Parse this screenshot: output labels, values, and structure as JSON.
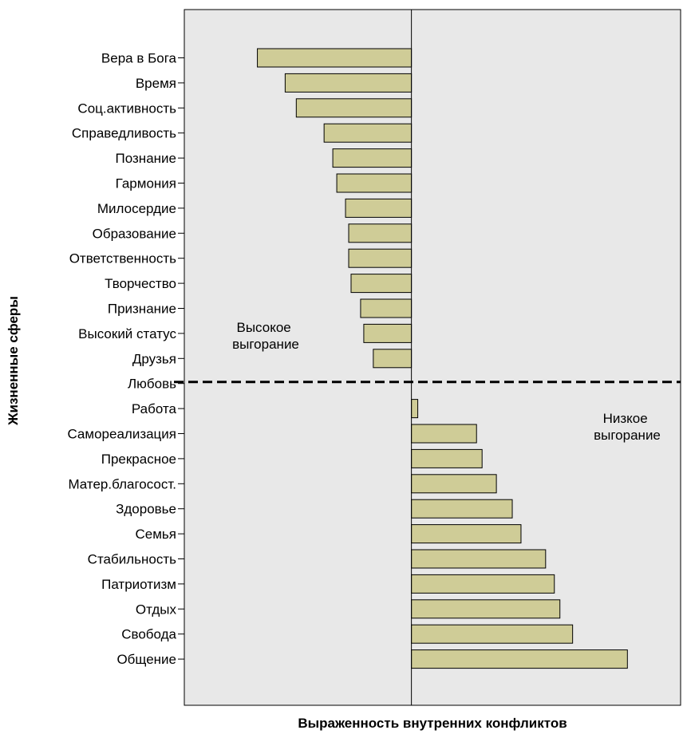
{
  "chart_data": {
    "type": "bar",
    "orientation": "horizontal",
    "xlabel": "Выраженность внутренних конфликтов",
    "ylabel": "Жизненные сферы",
    "categories": [
      "Вера в Бога",
      "Время",
      "Соц.активность",
      "Справедливость",
      "Познание",
      "Гармония",
      "Милосердие",
      "Образование",
      "Ответственность",
      "Творчество",
      "Признание",
      "Высокий статус",
      "Друзья",
      "Любовь",
      "Работа",
      "Самореализация",
      "Прекрасное",
      "Матер.благосост.",
      "Здоровье",
      "Семья",
      "Стабильность",
      "Патриотизм",
      "Отдых",
      "Свобода",
      "Общение"
    ],
    "values": [
      -1.94,
      -1.59,
      -1.45,
      -1.1,
      -0.99,
      -0.94,
      -0.83,
      -0.79,
      -0.79,
      -0.76,
      -0.64,
      -0.6,
      -0.48,
      0.0,
      0.08,
      0.82,
      0.89,
      1.07,
      1.27,
      1.38,
      1.69,
      1.8,
      1.87,
      2.03,
      2.72
    ],
    "xlim": [
      -2.86,
      3.39
    ],
    "grid": false,
    "colors": {
      "bar_fill": "#cfcc97",
      "bar_stroke": "#000000",
      "plot_bg": "#e8e8e8"
    },
    "annotations": [
      {
        "text_lines": [
          "Высокое",
          "выгорание"
        ],
        "region": "upper-left"
      },
      {
        "text_lines": [
          "Низкое",
          "выгорание"
        ],
        "region": "right"
      }
    ],
    "divider": {
      "style": "dashed",
      "at_category": "Любовь"
    }
  }
}
